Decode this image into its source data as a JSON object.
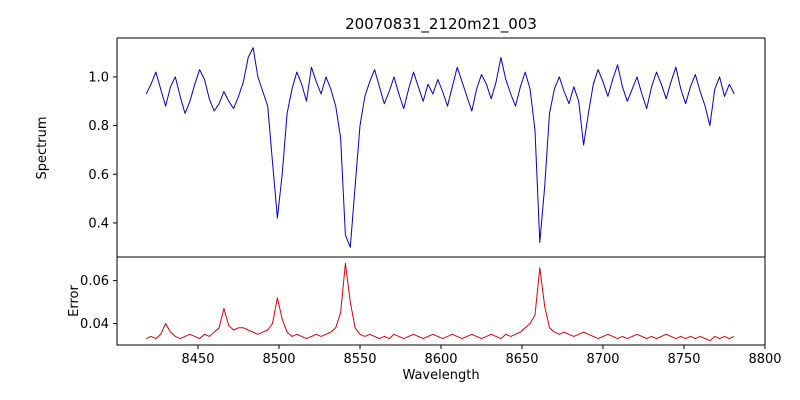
{
  "figure": {
    "title": "20070831_2120m21_003",
    "xlabel": "Wavelength"
  },
  "chart_data": [
    {
      "type": "line",
      "name": "spectrum",
      "ylabel": "Spectrum",
      "color": "#0000cc",
      "xlim": [
        8400,
        8800
      ],
      "ylim": [
        0.26,
        1.16
      ],
      "x_start": 8418,
      "x_step": 3,
      "yticks": {
        "values": [
          0.4,
          0.6,
          0.8,
          1.0
        ],
        "labels": [
          "0.4",
          "0.6",
          "0.8",
          "1.0"
        ]
      },
      "values": [
        0.93,
        0.97,
        1.02,
        0.95,
        0.88,
        0.96,
        1.0,
        0.92,
        0.85,
        0.9,
        0.97,
        1.03,
        0.99,
        0.91,
        0.86,
        0.89,
        0.94,
        0.9,
        0.87,
        0.92,
        0.98,
        1.08,
        1.12,
        1.0,
        0.94,
        0.88,
        0.65,
        0.42,
        0.6,
        0.85,
        0.95,
        1.02,
        0.97,
        0.9,
        1.04,
        0.98,
        0.93,
        1.0,
        0.95,
        0.88,
        0.75,
        0.35,
        0.3,
        0.55,
        0.8,
        0.92,
        0.98,
        1.03,
        0.96,
        0.89,
        0.94,
        1.0,
        0.93,
        0.87,
        0.95,
        1.02,
        0.96,
        0.9,
        0.97,
        0.93,
        0.99,
        0.94,
        0.88,
        0.96,
        1.04,
        0.98,
        0.92,
        0.86,
        0.95,
        1.01,
        0.97,
        0.91,
        0.98,
        1.08,
        0.99,
        0.93,
        0.88,
        0.96,
        1.02,
        0.95,
        0.78,
        0.32,
        0.55,
        0.85,
        0.95,
        1.0,
        0.94,
        0.89,
        0.96,
        0.9,
        0.72,
        0.85,
        0.97,
        1.03,
        0.98,
        0.92,
        0.99,
        1.05,
        0.96,
        0.9,
        0.95,
        1.0,
        0.93,
        0.87,
        0.96,
        1.02,
        0.97,
        0.91,
        0.98,
        1.04,
        0.95,
        0.89,
        0.96,
        1.01,
        0.94,
        0.88,
        0.8,
        0.95,
        1.0,
        0.92,
        0.97,
        0.93
      ]
    },
    {
      "type": "line",
      "name": "error",
      "ylabel": "Error",
      "xlabel": "Wavelength",
      "color": "#e00000",
      "xlim": [
        8400,
        8800
      ],
      "ylim": [
        0.03,
        0.071
      ],
      "x_start": 8418,
      "x_step": 3,
      "yticks": {
        "values": [
          0.04,
          0.06
        ],
        "labels": [
          "0.04",
          "0.06"
        ]
      },
      "xticks": {
        "values": [
          8450,
          8500,
          8550,
          8600,
          8650,
          8700,
          8750,
          8800
        ],
        "labels": [
          "8450",
          "8500",
          "8550",
          "8600",
          "8650",
          "8700",
          "8750",
          "8800"
        ]
      },
      "values": [
        0.033,
        0.034,
        0.033,
        0.035,
        0.04,
        0.036,
        0.034,
        0.033,
        0.034,
        0.035,
        0.034,
        0.033,
        0.035,
        0.034,
        0.036,
        0.038,
        0.047,
        0.039,
        0.037,
        0.038,
        0.038,
        0.037,
        0.036,
        0.035,
        0.036,
        0.037,
        0.04,
        0.052,
        0.042,
        0.036,
        0.034,
        0.035,
        0.034,
        0.033,
        0.034,
        0.035,
        0.034,
        0.035,
        0.036,
        0.038,
        0.045,
        0.068,
        0.05,
        0.038,
        0.035,
        0.034,
        0.035,
        0.034,
        0.033,
        0.034,
        0.033,
        0.035,
        0.034,
        0.033,
        0.034,
        0.035,
        0.034,
        0.033,
        0.034,
        0.035,
        0.034,
        0.033,
        0.034,
        0.035,
        0.034,
        0.033,
        0.034,
        0.035,
        0.034,
        0.033,
        0.034,
        0.035,
        0.034,
        0.033,
        0.035,
        0.034,
        0.035,
        0.036,
        0.038,
        0.04,
        0.044,
        0.066,
        0.048,
        0.038,
        0.036,
        0.035,
        0.036,
        0.035,
        0.034,
        0.035,
        0.036,
        0.035,
        0.034,
        0.033,
        0.034,
        0.035,
        0.034,
        0.033,
        0.034,
        0.033,
        0.034,
        0.035,
        0.034,
        0.033,
        0.034,
        0.033,
        0.034,
        0.035,
        0.034,
        0.033,
        0.034,
        0.033,
        0.034,
        0.033,
        0.034,
        0.033,
        0.032,
        0.034,
        0.033,
        0.034,
        0.033,
        0.034
      ]
    }
  ]
}
